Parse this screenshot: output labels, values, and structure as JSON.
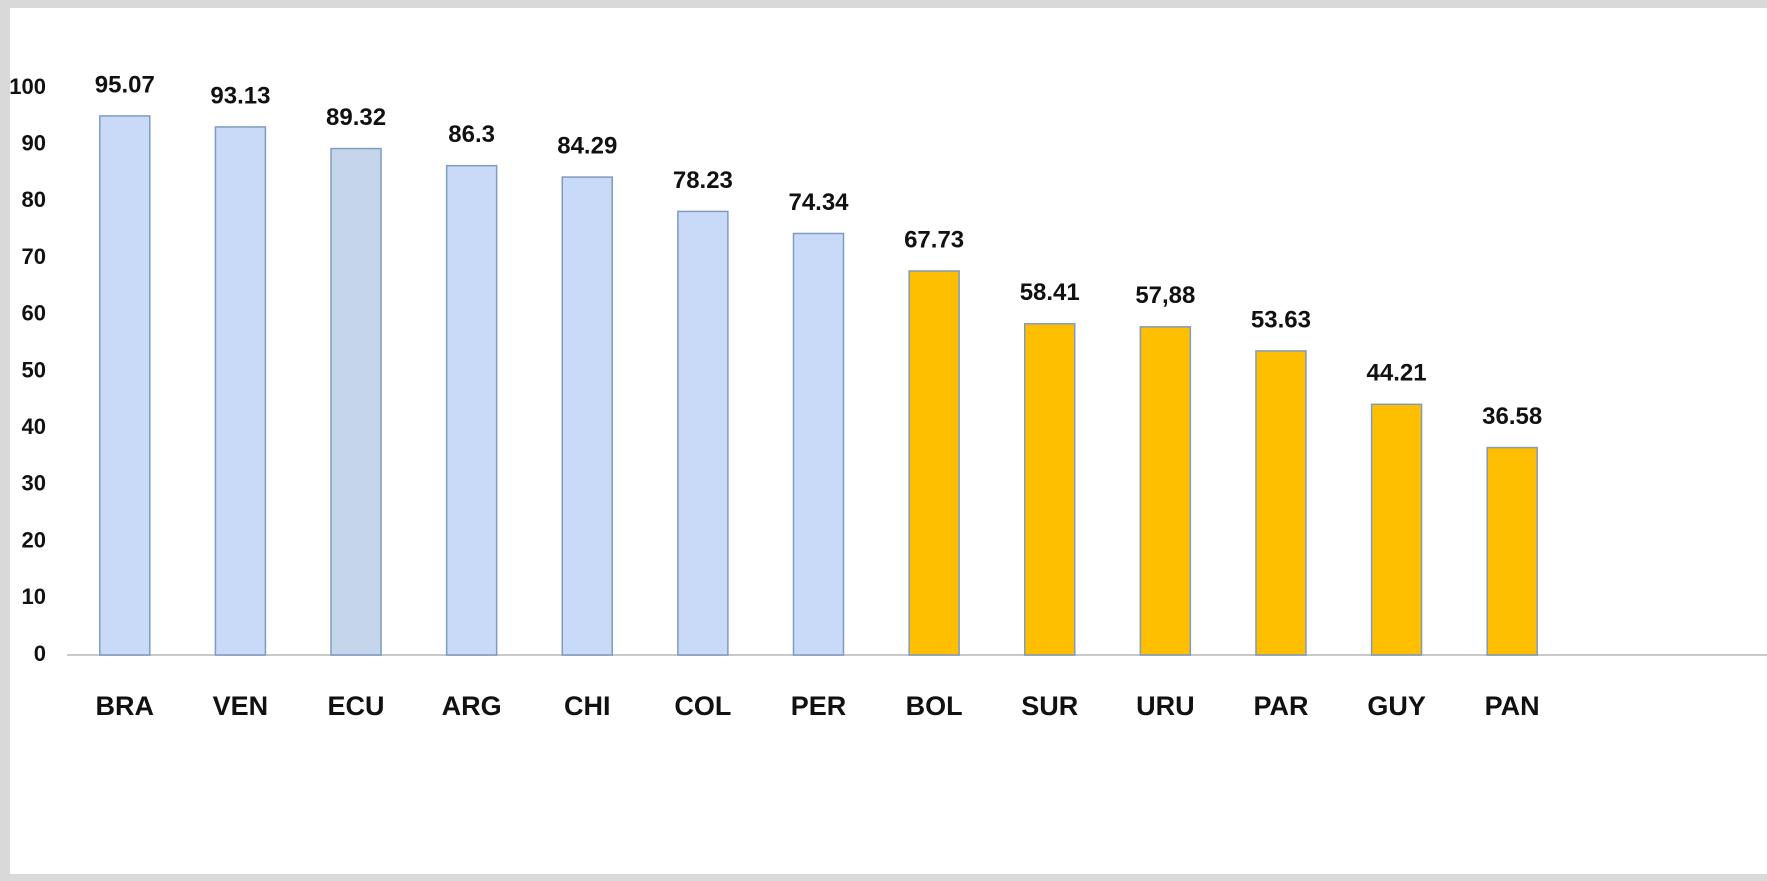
{
  "chart_data": {
    "type": "bar",
    "categories": [
      "BRA",
      "VEN",
      "ECU",
      "ARG",
      "CHI",
      "COL",
      "PER",
      "BOL",
      "SUR",
      "URU",
      "PAR",
      "GUY",
      "PAN"
    ],
    "values": [
      95.07,
      93.13,
      89.32,
      86.3,
      84.29,
      78.23,
      74.34,
      67.73,
      58.41,
      57.88,
      53.63,
      44.21,
      36.58
    ],
    "value_labels": [
      "95.07",
      "93.13",
      "89.32",
      "86.3",
      "84.29",
      "78.23",
      "74.34",
      "67.73",
      "58.41",
      "57,88",
      "53.63",
      "44.21",
      "36.58"
    ],
    "colors": [
      "#c8daf7",
      "#c8daf7",
      "#c5d5ec",
      "#c8daf7",
      "#c8daf7",
      "#c8daf7",
      "#c8daf7",
      "#fdbf00",
      "#fdbf00",
      "#fdbf00",
      "#fdbf00",
      "#fdbf00",
      "#fdbf00"
    ],
    "ylim": [
      0,
      100
    ],
    "yticks": [
      0,
      10,
      20,
      30,
      40,
      50,
      60,
      70,
      80,
      90,
      100
    ],
    "grid": false
  }
}
